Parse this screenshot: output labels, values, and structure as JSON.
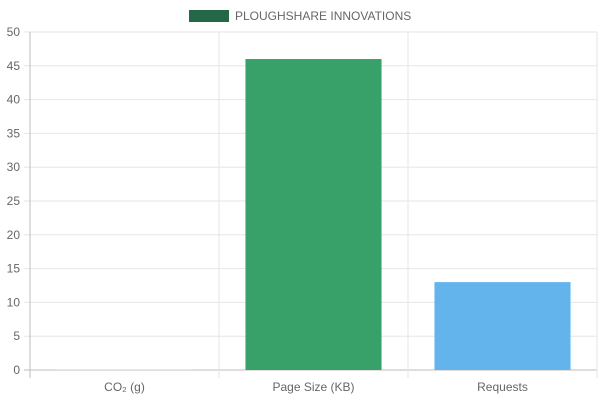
{
  "chart_data": {
    "type": "bar",
    "categories": [
      "CO₂ (g)",
      "Page Size (KB)",
      "Requests"
    ],
    "series": [
      {
        "name": "PLOUGHSHARE INNOVATIONS",
        "values": [
          0.02,
          46,
          13
        ],
        "colors": [
          "#ffffff",
          "#38a169",
          "#63b3ed"
        ]
      }
    ],
    "legend": {
      "label": "PLOUGHSHARE INNOVATIONS",
      "color": "#276749",
      "position": "top"
    },
    "ylim": [
      0,
      50
    ],
    "y_ticks": [
      0,
      5,
      10,
      15,
      20,
      25,
      30,
      35,
      40,
      45,
      50
    ],
    "grid": true,
    "title": "",
    "xlabel": "",
    "ylabel": ""
  }
}
